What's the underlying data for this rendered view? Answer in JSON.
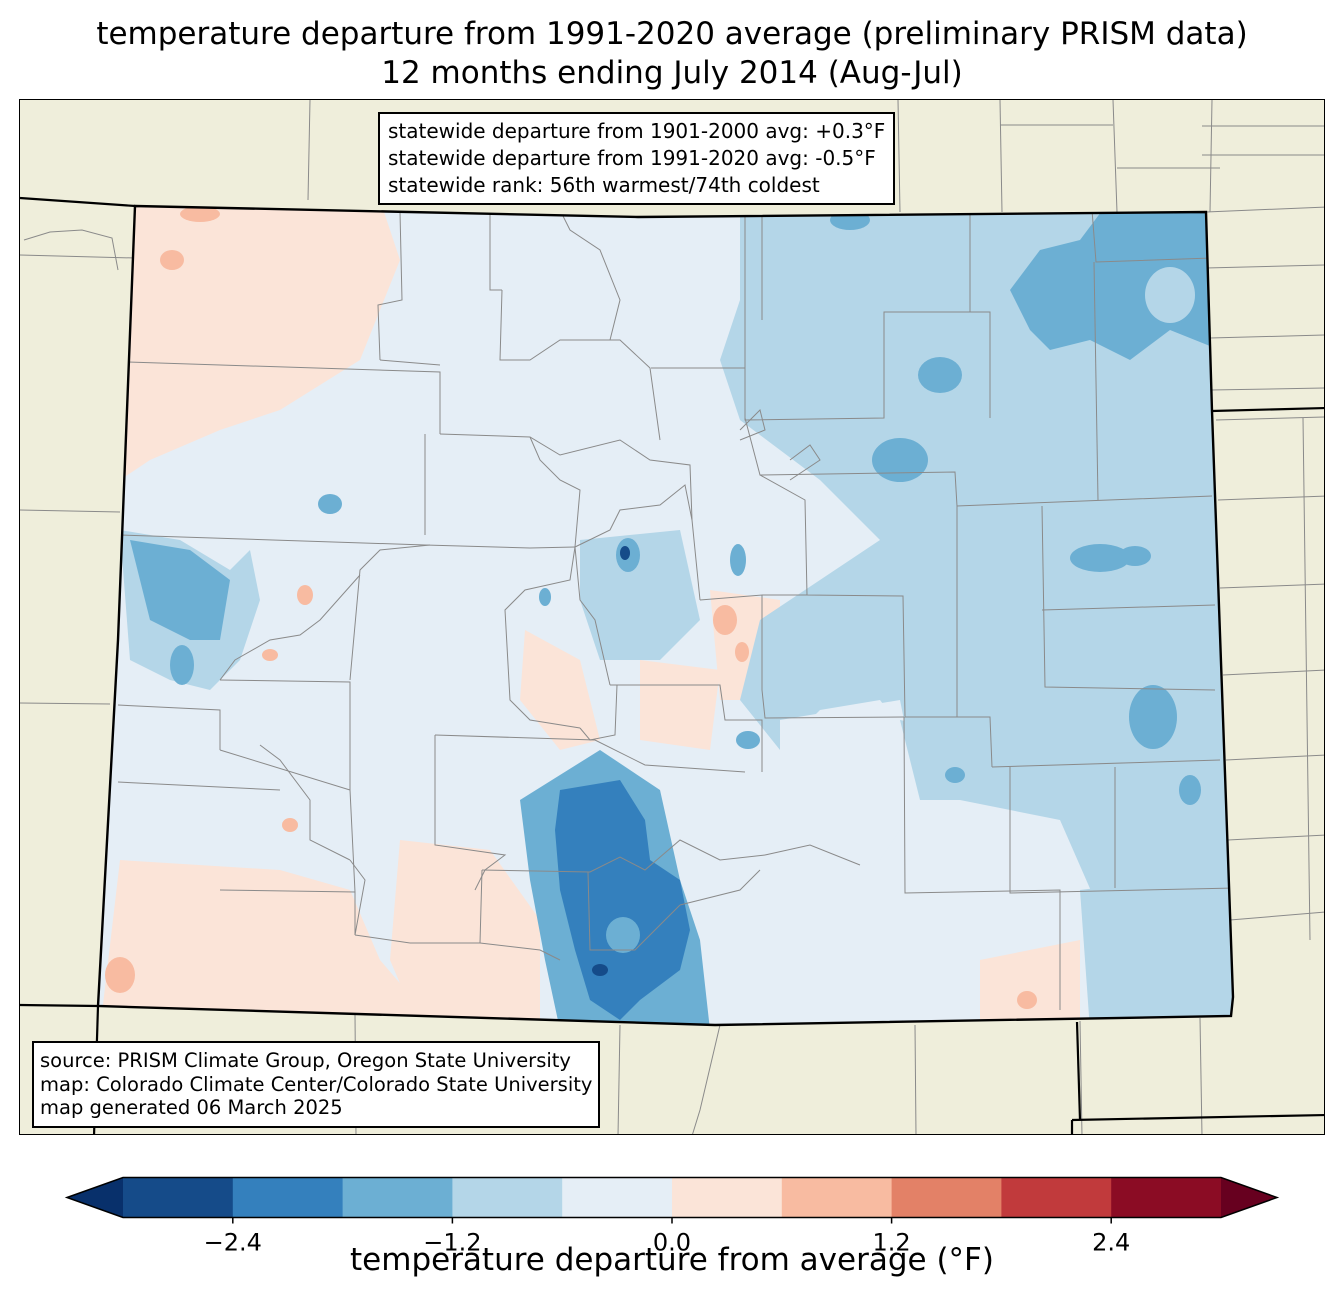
{
  "title": {
    "line1": "temperature departure from 1991-2020 average (preliminary PRISM data)",
    "line2": "12 months ending July 2014 (Aug-Jul)"
  },
  "stats": {
    "line1": "statewide departure from 1901-2000 avg: +0.3°F",
    "line2": "statewide departure from 1991-2020 avg: -0.5°F",
    "line3": "statewide rank: 56th warmest/74th coldest"
  },
  "source": {
    "line1": "source: PRISM Climate Group, Oregon State University",
    "line2": "map: Colorado Climate Center/Colorado State University",
    "line3": "map generated 06 March 2025"
  },
  "colorbar": {
    "label": "temperature departure from average (°F)",
    "ticks": [
      "−2.4",
      "−1.2",
      "0.0",
      "1.2",
      "2.4"
    ],
    "levels": [
      -3.0,
      -2.4,
      -1.8,
      -1.2,
      -0.6,
      0.0,
      0.6,
      1.2,
      1.8,
      2.4,
      3.0
    ],
    "colors": [
      "#08306b",
      "#154b89",
      "#3480bd",
      "#6cafd3",
      "#b4d6e8",
      "#e5eef6",
      "#fbe4d8",
      "#f8bba1",
      "#e38167",
      "#c13a3c",
      "#8b0c24",
      "#67001f"
    ]
  },
  "map_colors": {
    "background": "#efeedb",
    "near_zero_cool": "#e5eef6",
    "slight_warm": "#fbe4d8",
    "warm": "#f8bba1",
    "cool": "#b4d6e8",
    "cooler": "#6cafd3",
    "coldest": "#3480bd",
    "deepest": "#154b89",
    "county_lines": "#8a8a8a",
    "state_lines": "#000000"
  }
}
